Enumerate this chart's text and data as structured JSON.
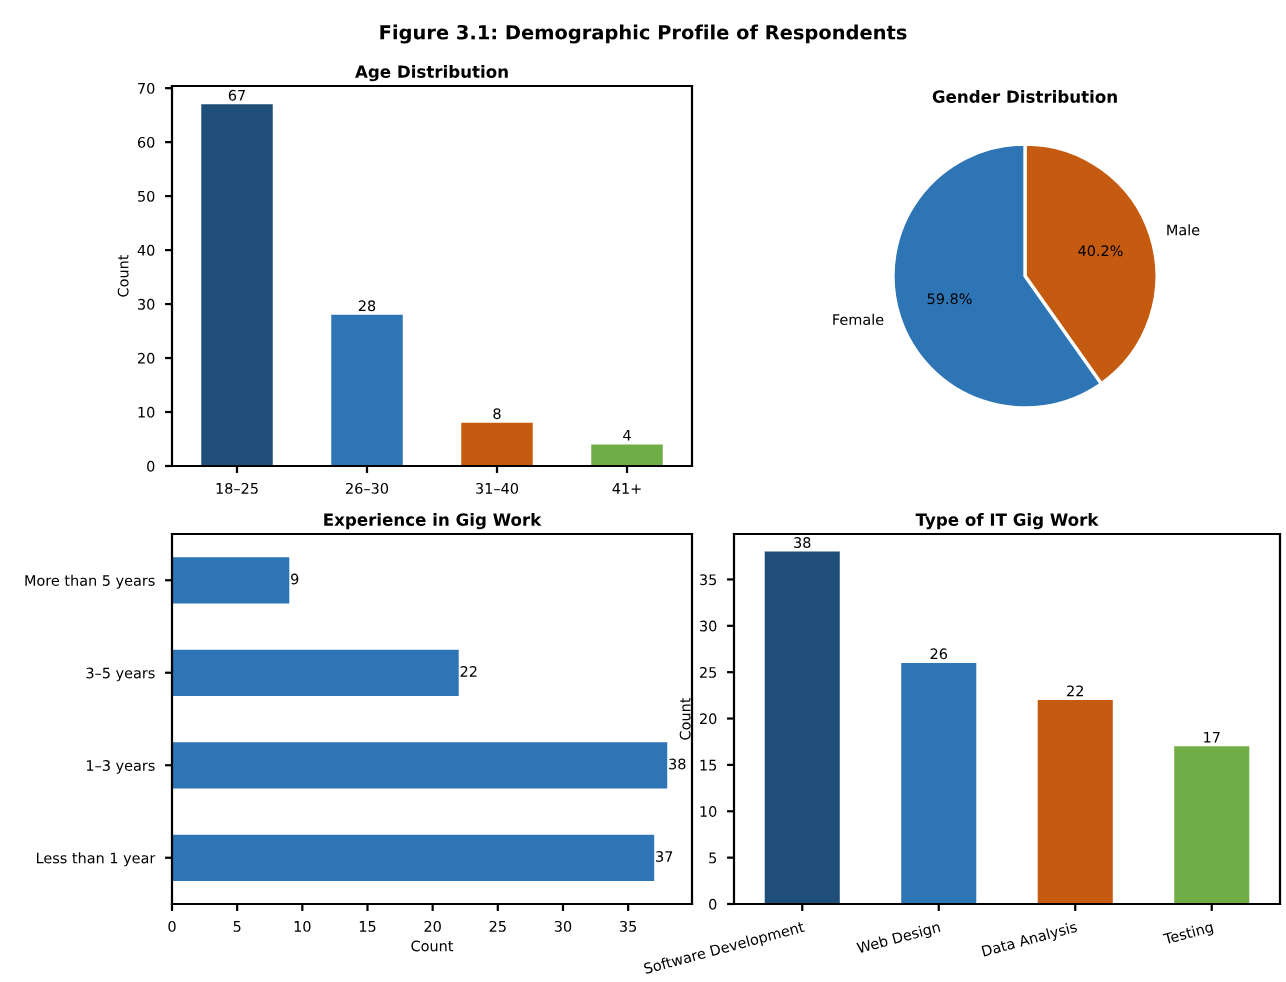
{
  "chart_data": [
    {
      "type": "bar",
      "title": "Age Distribution",
      "annotations": [
        "Figure 3.1: Demographic Profile of Respondents"
      ],
      "ylabel": "Count",
      "categories": [
        "18–25",
        "26–30",
        "31–40",
        "41+"
      ],
      "values": [
        67,
        28,
        8,
        4
      ],
      "colors": [
        "#1f4e79",
        "#2e75b6",
        "#c55a11",
        "#70ad47"
      ],
      "ylim": [
        0,
        70.4
      ],
      "yticks": [
        0,
        10,
        20,
        30,
        40,
        50,
        60,
        70
      ],
      "data_labels": true
    },
    {
      "type": "pie",
      "title": "Gender Distribution",
      "categories": [
        "Male",
        "Female"
      ],
      "values": [
        40.2,
        59.8
      ],
      "colors": [
        "#c55a11",
        "#2e75b6"
      ],
      "value_labels": [
        "40.2%",
        "59.8%"
      ]
    },
    {
      "type": "bar",
      "orientation": "horizontal",
      "title": "Experience in Gig Work",
      "xlabel": "Count",
      "categories": [
        "More than 5 years",
        "3–5 years",
        "1–3 years",
        "Less than 1 year"
      ],
      "values": [
        9,
        22,
        38,
        37
      ],
      "color": "#2e75b6",
      "xlim": [
        0,
        39.9
      ],
      "xticks": [
        0,
        5,
        10,
        15,
        20,
        25,
        30,
        35
      ],
      "data_labels": true
    },
    {
      "type": "bar",
      "title": "Type of IT Gig Work",
      "ylabel": "Count",
      "categories": [
        "Software Development",
        "Web Design",
        "Data Analysis",
        "Testing"
      ],
      "values": [
        38,
        26,
        22,
        17
      ],
      "colors": [
        "#1f4e79",
        "#2e75b6",
        "#c55a11",
        "#70ad47"
      ],
      "ylim": [
        0,
        39.9
      ],
      "yticks": [
        0,
        5,
        10,
        15,
        20,
        25,
        30,
        35
      ],
      "data_labels": true
    }
  ]
}
